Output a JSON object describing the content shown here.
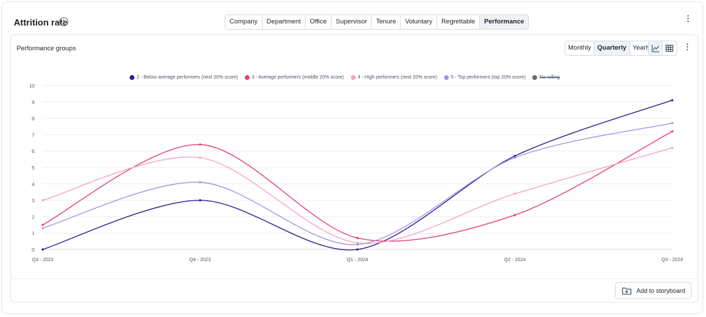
{
  "header": {
    "title": "Attrition rate",
    "info_glyph": "i",
    "tabs": [
      {
        "label": "Company",
        "active": false
      },
      {
        "label": "Department",
        "active": false
      },
      {
        "label": "Office",
        "active": false
      },
      {
        "label": "Supervisor",
        "active": false
      },
      {
        "label": "Tenure",
        "active": false
      },
      {
        "label": "Voluntary",
        "active": false
      },
      {
        "label": "Regrettable",
        "active": false
      },
      {
        "label": "Performance",
        "active": true
      }
    ]
  },
  "card": {
    "title": "Performance groups",
    "periods": [
      {
        "label": "Monthly",
        "active": false
      },
      {
        "label": "Quarterly",
        "active": true
      },
      {
        "label": "Yearly",
        "active": false
      }
    ],
    "view_icons": [
      "line-chart-icon",
      "table-icon"
    ],
    "add_button_label": "Add to storyboard"
  },
  "chart_data": {
    "type": "line",
    "x": [
      "Q3 - 2023",
      "Q4 - 2023",
      "Q1 - 2024",
      "Q2 - 2024",
      "Q3 - 2024"
    ],
    "ylim": [
      0,
      10
    ],
    "yticks": [
      0,
      1,
      2,
      3,
      4,
      5,
      6,
      7,
      8,
      9,
      10
    ],
    "grid": true,
    "legend_position": "top-center",
    "series": [
      {
        "name": "2 - Below average performers (next 20% score)",
        "color": "#2e1a8e",
        "values": [
          0.0,
          3.0,
          0.0,
          5.7,
          9.1
        ]
      },
      {
        "name": "3 - Average performers (middle 20% score)",
        "color": "#e23d7e",
        "values": [
          1.5,
          6.4,
          0.7,
          2.1,
          7.2
        ]
      },
      {
        "name": "4 - High performers (next 20% score)",
        "color": "#f4a3c5",
        "values": [
          3.0,
          5.6,
          0.4,
          3.4,
          6.2
        ]
      },
      {
        "name": "5 - Top performers (top 20% score)",
        "color": "#a394e6",
        "values": [
          1.3,
          4.1,
          0.3,
          5.6,
          7.7
        ]
      }
    ],
    "extra_legend": {
      "name": "No rolling",
      "color": "#6b6b6b",
      "disabled": true
    }
  }
}
